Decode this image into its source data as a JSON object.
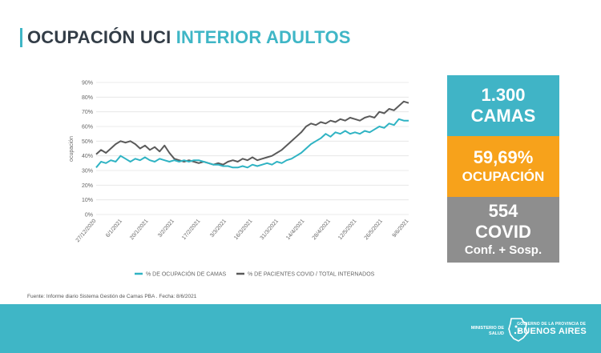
{
  "header": {
    "title_part1": "OCUPACIÓN UCI",
    "title_part2": "INTERIOR ADULTOS"
  },
  "cards": {
    "camas_value": "1.300",
    "camas_label": "CAMAS",
    "ocupacion_value": "59,69%",
    "ocupacion_label": "OCUPACIÓN",
    "covid_value": "554",
    "covid_label": "COVID",
    "covid_detail": "Conf. + Sosp."
  },
  "source": "Fuente: Informe diario Sistema Gestión de Camas PBA . Fecha: 8/6/2021",
  "footer": {
    "ministerio_line1": "MINISTERIO DE",
    "ministerio_line2": "SALUD",
    "gob_line1": "GOBIERNO DE LA PROVINCIA DE",
    "gob_line2": "BUENOS AIRES"
  },
  "colors": {
    "accent": "#3fb6c6",
    "orange": "#f7a21b",
    "gray_card": "#8e8e8e",
    "series_camas": "#2fb3c3",
    "series_covid": "#5a5a5a"
  },
  "chart_data": {
    "type": "line",
    "ylabel": "ocupación",
    "xlabel": "",
    "ylim": [
      0,
      90
    ],
    "yticks": [
      "0%",
      "10%",
      "20%",
      "30%",
      "40%",
      "50%",
      "60%",
      "70%",
      "80%",
      "90%"
    ],
    "grid": true,
    "legend_position": "bottom",
    "x_tick_labels": [
      "27/12/2020",
      "6/1/2021",
      "20/1/2021",
      "3/2/2021",
      "17/2/2021",
      "3/3/2021",
      "16/3/2021",
      "31/3/2021",
      "14/4/2021",
      "28/4/2021",
      "12/5/2021",
      "26/5/2021",
      "9/6/2021"
    ],
    "series": [
      {
        "name": "% DE OCUPACIÓN DE CAMAS",
        "color": "#2fb3c3",
        "values": [
          32,
          36,
          35,
          37,
          36,
          40,
          38,
          36,
          38,
          37,
          39,
          37,
          36,
          38,
          37,
          36,
          37,
          36,
          37,
          36,
          37,
          37,
          36,
          35,
          34,
          34,
          33,
          33,
          32,
          32,
          33,
          32,
          34,
          33,
          34,
          35,
          34,
          36,
          35,
          37,
          38,
          40,
          42,
          45,
          48,
          50,
          52,
          55,
          53,
          56,
          55,
          57,
          55,
          56,
          55,
          57,
          56,
          58,
          60,
          59,
          62,
          61,
          65,
          64,
          64
        ]
      },
      {
        "name": "% DE PACIENTES COVID / TOTAL INTERNADOS",
        "color": "#5a5a5a",
        "values": [
          41,
          44,
          42,
          45,
          48,
          50,
          49,
          50,
          48,
          45,
          47,
          44,
          46,
          43,
          47,
          42,
          38,
          37,
          36,
          37,
          36,
          35,
          36,
          35,
          34,
          35,
          34,
          36,
          37,
          36,
          38,
          37,
          39,
          37,
          38,
          39,
          40,
          42,
          44,
          47,
          50,
          53,
          56,
          60,
          62,
          61,
          63,
          62,
          64,
          63,
          65,
          64,
          66,
          65,
          64,
          66,
          67,
          66,
          70,
          69,
          72,
          71,
          74,
          77,
          76
        ]
      }
    ]
  }
}
